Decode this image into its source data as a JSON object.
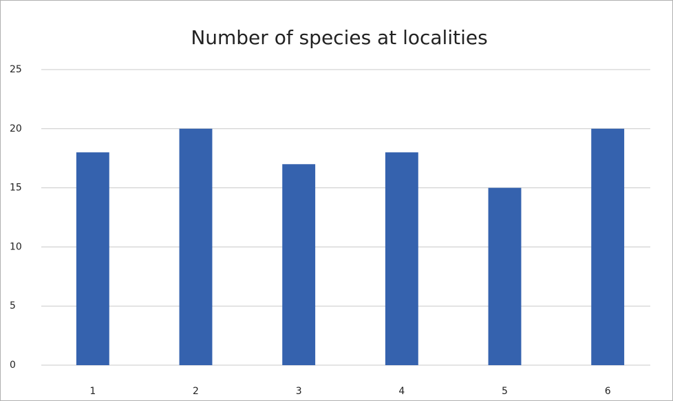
{
  "chart_data": {
    "type": "bar",
    "title": "Number of species at localities",
    "categories": [
      "1",
      "2",
      "3",
      "4",
      "5",
      "6"
    ],
    "values": [
      18,
      20,
      17,
      18,
      15,
      20
    ],
    "color": "#3562ae",
    "ylim": [
      0,
      25
    ],
    "yticks": [
      0,
      5,
      10,
      15,
      20,
      25
    ],
    "grid": true
  }
}
